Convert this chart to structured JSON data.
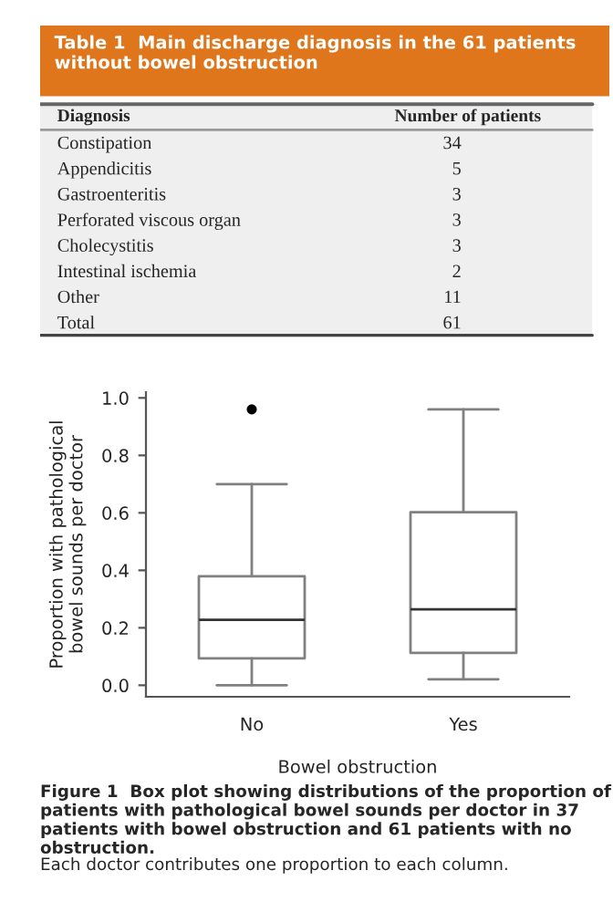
{
  "chart_data": [
    {
      "type": "other",
      "title": "Table 1  Main discharge diagnosis in the 61 patients without bowel obstruction",
      "annotations": [
        "Diagnosis",
        "Number of patients"
      ],
      "categories": [
        "Constipation",
        "Appendicitis",
        "Gastroenteritis",
        "Perforated viscous organ",
        "Cholecystitis",
        "Intestinal ischemia",
        "Other",
        "Total"
      ],
      "values": [
        34,
        5,
        3,
        3,
        3,
        2,
        11,
        61
      ],
      "data_labels": true
    },
    {
      "type": "box",
      "title": "Figure 1  Box plot showing distributions of the proportion of patients with pathological bowel sounds per doctor in 37 patients with bowel obstruction and 61 patients with no obstruction.",
      "annotations": [
        "Each doctor contributes one proportion to each column."
      ],
      "xlabel": "Bowel obstruction",
      "ylabel": "Proportion with pathological\nbowel sounds per doctor",
      "categories": [
        "No",
        "Yes"
      ],
      "boxes": [
        {
          "low": 0.0,
          "q1": 0.094,
          "median": 0.228,
          "q3": 0.379,
          "high": 0.7,
          "outliers": [
            0.96
          ]
        },
        {
          "low": 0.021,
          "q1": 0.113,
          "median": 0.264,
          "q3": 0.602,
          "high": 0.96
        }
      ],
      "color": "#808080",
      "ylim": [
        -0.04,
        1.02
      ],
      "yticks": [
        {
          "value": 0.0,
          "label": "0.0"
        },
        {
          "value": 0.2,
          "label": "0.2"
        },
        {
          "value": 0.4,
          "label": "0.4"
        },
        {
          "value": 0.6,
          "label": "0.6"
        },
        {
          "value": 0.8,
          "label": "0.8"
        },
        {
          "value": 1.0,
          "label": "1.0"
        }
      ],
      "grid": false
    }
  ]
}
